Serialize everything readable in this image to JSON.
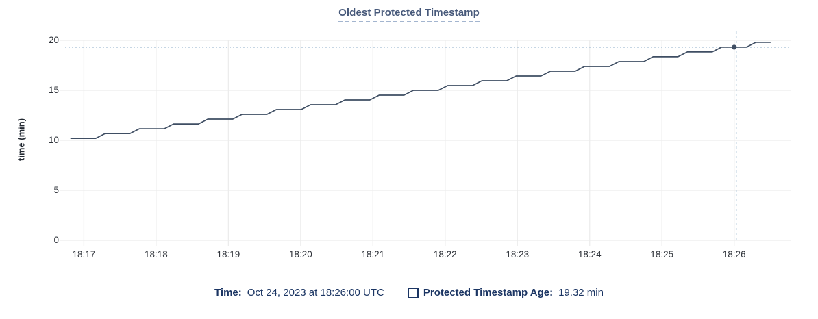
{
  "title": "Oldest Protected Timestamp",
  "chart_data": {
    "type": "line",
    "title": "Oldest Protected Timestamp",
    "xlabel": "",
    "ylabel": "time (min)",
    "ylim": [
      0,
      20
    ],
    "xlim_minutes_after_1800": [
      16.74,
      26.79
    ],
    "grid": true,
    "x_unit": "clock time (UTC), minutes after 18:00",
    "y_ticks": [
      {
        "v": 20,
        "label": "20"
      },
      {
        "v": 15,
        "label": "15"
      },
      {
        "v": 10,
        "label": "10"
      },
      {
        "v": 5,
        "label": "5"
      },
      {
        "v": 0,
        "label": "0"
      }
    ],
    "x_ticks": [
      {
        "t": 17,
        "label": "18:17"
      },
      {
        "t": 18,
        "label": "18:18"
      },
      {
        "t": 19,
        "label": "18:19"
      },
      {
        "t": 20,
        "label": "18:20"
      },
      {
        "t": 21,
        "label": "18:21"
      },
      {
        "t": 22,
        "label": "18:22"
      },
      {
        "t": 23,
        "label": "18:23"
      },
      {
        "t": 24,
        "label": "18:24"
      },
      {
        "t": 25,
        "label": "18:25"
      },
      {
        "t": 26,
        "label": "18:26"
      }
    ],
    "series": [
      {
        "name": "Protected Timestamp Age",
        "points": [
          [
            16.82,
            10.2
          ],
          [
            17.164,
            10.2
          ],
          [
            17.294,
            10.68
          ],
          [
            17.638,
            10.68
          ],
          [
            17.768,
            11.16
          ],
          [
            18.112,
            11.16
          ],
          [
            18.242,
            11.64
          ],
          [
            18.586,
            11.64
          ],
          [
            18.716,
            12.12
          ],
          [
            19.06,
            12.12
          ],
          [
            19.19,
            12.6
          ],
          [
            19.534,
            12.6
          ],
          [
            19.664,
            13.08
          ],
          [
            20.008,
            13.08
          ],
          [
            20.138,
            13.56
          ],
          [
            20.482,
            13.56
          ],
          [
            20.612,
            14.04
          ],
          [
            20.956,
            14.04
          ],
          [
            21.086,
            14.52
          ],
          [
            21.43,
            14.52
          ],
          [
            21.56,
            15.0
          ],
          [
            21.904,
            15.0
          ],
          [
            22.034,
            15.48
          ],
          [
            22.378,
            15.48
          ],
          [
            22.508,
            15.96
          ],
          [
            22.852,
            15.96
          ],
          [
            22.982,
            16.44
          ],
          [
            23.326,
            16.44
          ],
          [
            23.456,
            16.92
          ],
          [
            23.8,
            16.92
          ],
          [
            23.93,
            17.4
          ],
          [
            24.274,
            17.4
          ],
          [
            24.404,
            17.88
          ],
          [
            24.748,
            17.88
          ],
          [
            24.878,
            18.36
          ],
          [
            25.222,
            18.36
          ],
          [
            25.352,
            18.84
          ],
          [
            25.696,
            18.84
          ],
          [
            25.826,
            19.32
          ],
          [
            26.17,
            19.32
          ],
          [
            26.3,
            19.8
          ],
          [
            26.5,
            19.8
          ]
        ]
      }
    ],
    "highlight": {
      "t": 26.0,
      "value": 19.32,
      "time_label": "18:26:00",
      "value_label": "19.32 min"
    }
  },
  "footer": {
    "time_label": "Time:",
    "time_value": "Oct 24, 2023 at 18:26:00 UTC",
    "series_label": "Protected Timestamp Age:",
    "series_value": "19.32 min"
  },
  "colors": {
    "line": "#3f4e63",
    "dot": "#3f4e63",
    "grid": "#ececec",
    "crosshair": "#a3bdd3",
    "title": "#47597a",
    "title_underline": "#a3b5cf",
    "legend_text": "#1b3563",
    "tick_text": "#30343b"
  }
}
